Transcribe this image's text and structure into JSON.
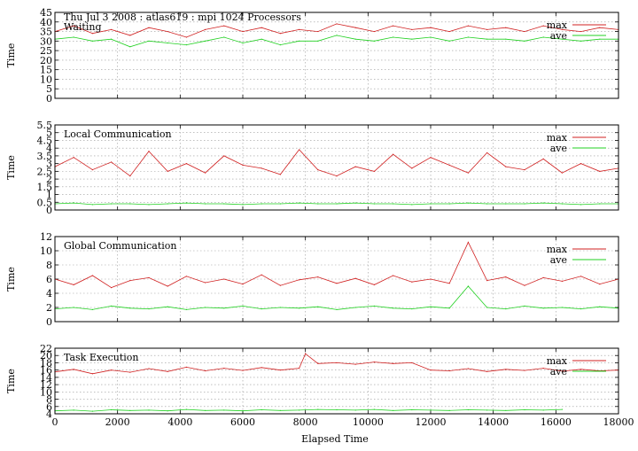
{
  "header": "Thu Jul 3 2008 : atlas619 : mpi 1024 Processors",
  "colors": {
    "max": "#d02020",
    "ave": "#20d020",
    "grid": "#9a9a9a"
  },
  "chart_data": [
    {
      "type": "line",
      "title": "Waiting",
      "ylabel": "Time",
      "xlabel": "",
      "xlim": [
        0,
        18000
      ],
      "ylim": [
        0,
        45
      ],
      "yticks": [
        0,
        5,
        10,
        15,
        20,
        25,
        30,
        35,
        40,
        45
      ],
      "xticks": [
        0,
        2000,
        4000,
        6000,
        8000,
        10000,
        12000,
        14000,
        16000,
        18000
      ],
      "grid": true,
      "legend": "top-right",
      "series": [
        {
          "name": "max",
          "color": "#d02020",
          "x": [
            0,
            600,
            1200,
            1800,
            2400,
            3000,
            3600,
            4200,
            4800,
            5400,
            6000,
            6600,
            7200,
            7800,
            8400,
            9000,
            9600,
            10200,
            10800,
            11400,
            12000,
            12600,
            13200,
            13800,
            14400,
            15000,
            15600,
            16200,
            16800,
            17400,
            18000
          ],
          "y": [
            35,
            38,
            34,
            36,
            33,
            37,
            35,
            32,
            36,
            38,
            35,
            37,
            34,
            36,
            35,
            39,
            37,
            35,
            38,
            36,
            37,
            35,
            38,
            36,
            37,
            35,
            38,
            36,
            35,
            37,
            36
          ]
        },
        {
          "name": "ave",
          "color": "#20d020",
          "x": [
            0,
            600,
            1200,
            1800,
            2400,
            3000,
            3600,
            4200,
            4800,
            5400,
            6000,
            6600,
            7200,
            7800,
            8400,
            9000,
            9600,
            10200,
            10800,
            11400,
            12000,
            12600,
            13200,
            13800,
            14400,
            15000,
            15600,
            16200,
            16800,
            17400,
            18000
          ],
          "y": [
            31,
            32,
            30,
            31,
            27,
            30,
            29,
            28,
            30,
            32,
            29,
            31,
            28,
            30,
            30,
            33,
            31,
            30,
            32,
            31,
            32,
            30,
            32,
            31,
            31,
            30,
            32,
            31,
            30,
            31,
            31
          ]
        }
      ]
    },
    {
      "type": "line",
      "title": "Local Communication",
      "ylabel": "Time",
      "xlabel": "",
      "xlim": [
        0,
        18000
      ],
      "ylim": [
        0,
        5.5
      ],
      "yticks": [
        0,
        0.5,
        1,
        1.5,
        2,
        2.5,
        3,
        3.5,
        4,
        4.5,
        5,
        5.5
      ],
      "xticks": [
        0,
        2000,
        4000,
        6000,
        8000,
        10000,
        12000,
        14000,
        16000,
        18000
      ],
      "grid": true,
      "legend": "top-right",
      "series": [
        {
          "name": "max",
          "color": "#d02020",
          "x": [
            0,
            600,
            1200,
            1800,
            2400,
            3000,
            3600,
            4200,
            4800,
            5400,
            6000,
            6600,
            7200,
            7800,
            8400,
            9000,
            9600,
            10200,
            10800,
            11400,
            12000,
            12600,
            13200,
            13800,
            14400,
            15000,
            15600,
            16200,
            16800,
            17400,
            18000
          ],
          "y": [
            2.8,
            3.4,
            2.6,
            3.1,
            2.2,
            3.8,
            2.5,
            3.0,
            2.4,
            3.5,
            2.9,
            2.7,
            2.3,
            3.9,
            2.6,
            2.2,
            2.8,
            2.5,
            3.6,
            2.7,
            3.4,
            2.9,
            2.4,
            3.7,
            2.8,
            2.6,
            3.3,
            2.4,
            3.0,
            2.5,
            2.7
          ]
        },
        {
          "name": "ave",
          "color": "#20d020",
          "x": [
            0,
            600,
            1200,
            1800,
            2400,
            3000,
            3600,
            4200,
            4800,
            5400,
            6000,
            6600,
            7200,
            7800,
            8400,
            9000,
            9600,
            10200,
            10800,
            11400,
            12000,
            12600,
            13200,
            13800,
            14400,
            15000,
            15600,
            16200,
            16800,
            17400,
            18000
          ],
          "y": [
            0.4,
            0.45,
            0.35,
            0.4,
            0.4,
            0.35,
            0.4,
            0.45,
            0.4,
            0.4,
            0.35,
            0.4,
            0.4,
            0.45,
            0.4,
            0.4,
            0.45,
            0.4,
            0.4,
            0.35,
            0.4,
            0.4,
            0.45,
            0.4,
            0.4,
            0.4,
            0.45,
            0.4,
            0.35,
            0.4,
            0.4
          ]
        }
      ]
    },
    {
      "type": "line",
      "title": "Global Communication",
      "ylabel": "Time",
      "xlabel": "",
      "xlim": [
        0,
        18000
      ],
      "ylim": [
        0,
        12
      ],
      "yticks": [
        0,
        2,
        4,
        6,
        8,
        10,
        12
      ],
      "xticks": [
        0,
        2000,
        4000,
        6000,
        8000,
        10000,
        12000,
        14000,
        16000,
        18000
      ],
      "grid": true,
      "legend": "top-right",
      "series": [
        {
          "name": "max",
          "color": "#d02020",
          "x": [
            0,
            600,
            1200,
            1800,
            2400,
            3000,
            3600,
            4200,
            4800,
            5400,
            6000,
            6600,
            7200,
            7800,
            8400,
            9000,
            9600,
            10200,
            10800,
            11400,
            12000,
            12600,
            13200,
            13800,
            14400,
            15000,
            15600,
            16200,
            16800,
            17400,
            18000
          ],
          "y": [
            6.0,
            5.2,
            6.5,
            4.8,
            5.8,
            6.2,
            5.0,
            6.4,
            5.5,
            6.0,
            5.3,
            6.6,
            5.1,
            5.9,
            6.3,
            5.4,
            6.1,
            5.2,
            6.5,
            5.6,
            6.0,
            5.4,
            11.2,
            5.8,
            6.3,
            5.1,
            6.2,
            5.7,
            6.4,
            5.3,
            6.0
          ]
        },
        {
          "name": "ave",
          "color": "#20d020",
          "x": [
            0,
            600,
            1200,
            1800,
            2400,
            3000,
            3600,
            4200,
            4800,
            5400,
            6000,
            6600,
            7200,
            7800,
            8400,
            9000,
            9600,
            10200,
            10800,
            11400,
            12000,
            12600,
            13200,
            13800,
            14400,
            15000,
            15600,
            16200,
            16800,
            17400,
            18000
          ],
          "y": [
            1.8,
            2.0,
            1.7,
            2.2,
            1.9,
            1.8,
            2.1,
            1.7,
            2.0,
            1.9,
            2.2,
            1.8,
            2.0,
            1.9,
            2.1,
            1.7,
            2.0,
            2.2,
            1.9,
            1.8,
            2.1,
            1.9,
            5.0,
            2.0,
            1.8,
            2.2,
            1.9,
            2.0,
            1.8,
            2.1,
            1.9
          ]
        }
      ]
    },
    {
      "type": "line",
      "title": "Task Execution",
      "ylabel": "Time",
      "xlabel": "Elapsed Time",
      "xlim": [
        0,
        18000
      ],
      "ylim": [
        4,
        22
      ],
      "yticks": [
        4,
        6,
        8,
        10,
        12,
        14,
        16,
        18,
        20,
        22
      ],
      "xticks": [
        0,
        2000,
        4000,
        6000,
        8000,
        10000,
        12000,
        14000,
        16000,
        18000
      ],
      "grid": true,
      "legend": "top-right",
      "series": [
        {
          "name": "max",
          "color": "#d02020",
          "x": [
            0,
            600,
            1200,
            1800,
            2400,
            3000,
            3600,
            4200,
            4800,
            5400,
            6000,
            6600,
            7200,
            7800,
            8000,
            8400,
            9000,
            9600,
            10200,
            10800,
            11400,
            12000,
            12600,
            13200,
            13800,
            14400,
            15000,
            15600,
            16200,
            16800,
            17400,
            18000
          ],
          "y": [
            15.5,
            16.2,
            15.0,
            16.0,
            15.4,
            16.4,
            15.6,
            16.8,
            15.8,
            16.5,
            15.9,
            16.7,
            16.0,
            16.5,
            20.5,
            17.8,
            18.0,
            17.6,
            18.2,
            17.8,
            18.0,
            16.0,
            15.8,
            16.4,
            15.6,
            16.2,
            15.9,
            16.5,
            15.7,
            16.2,
            15.8,
            16.0
          ]
        },
        {
          "name": "ave",
          "color": "#20d020",
          "x": [
            0,
            600,
            1200,
            1800,
            2400,
            3000,
            3600,
            4200,
            4800,
            5400,
            6000,
            6600,
            7200,
            7800,
            8400,
            9000,
            9600,
            10200,
            10800,
            11400,
            12000,
            12600,
            13200,
            13800,
            14400,
            15000,
            15600,
            16200
          ],
          "y": [
            4.8,
            5.0,
            4.7,
            5.1,
            4.9,
            5.0,
            4.8,
            5.2,
            4.9,
            5.0,
            4.8,
            5.1,
            4.9,
            5.0,
            5.2,
            5.1,
            5.0,
            5.2,
            4.9,
            5.1,
            5.0,
            4.9,
            5.1,
            5.0,
            4.9,
            5.1,
            5.0,
            5.2
          ]
        }
      ]
    }
  ]
}
